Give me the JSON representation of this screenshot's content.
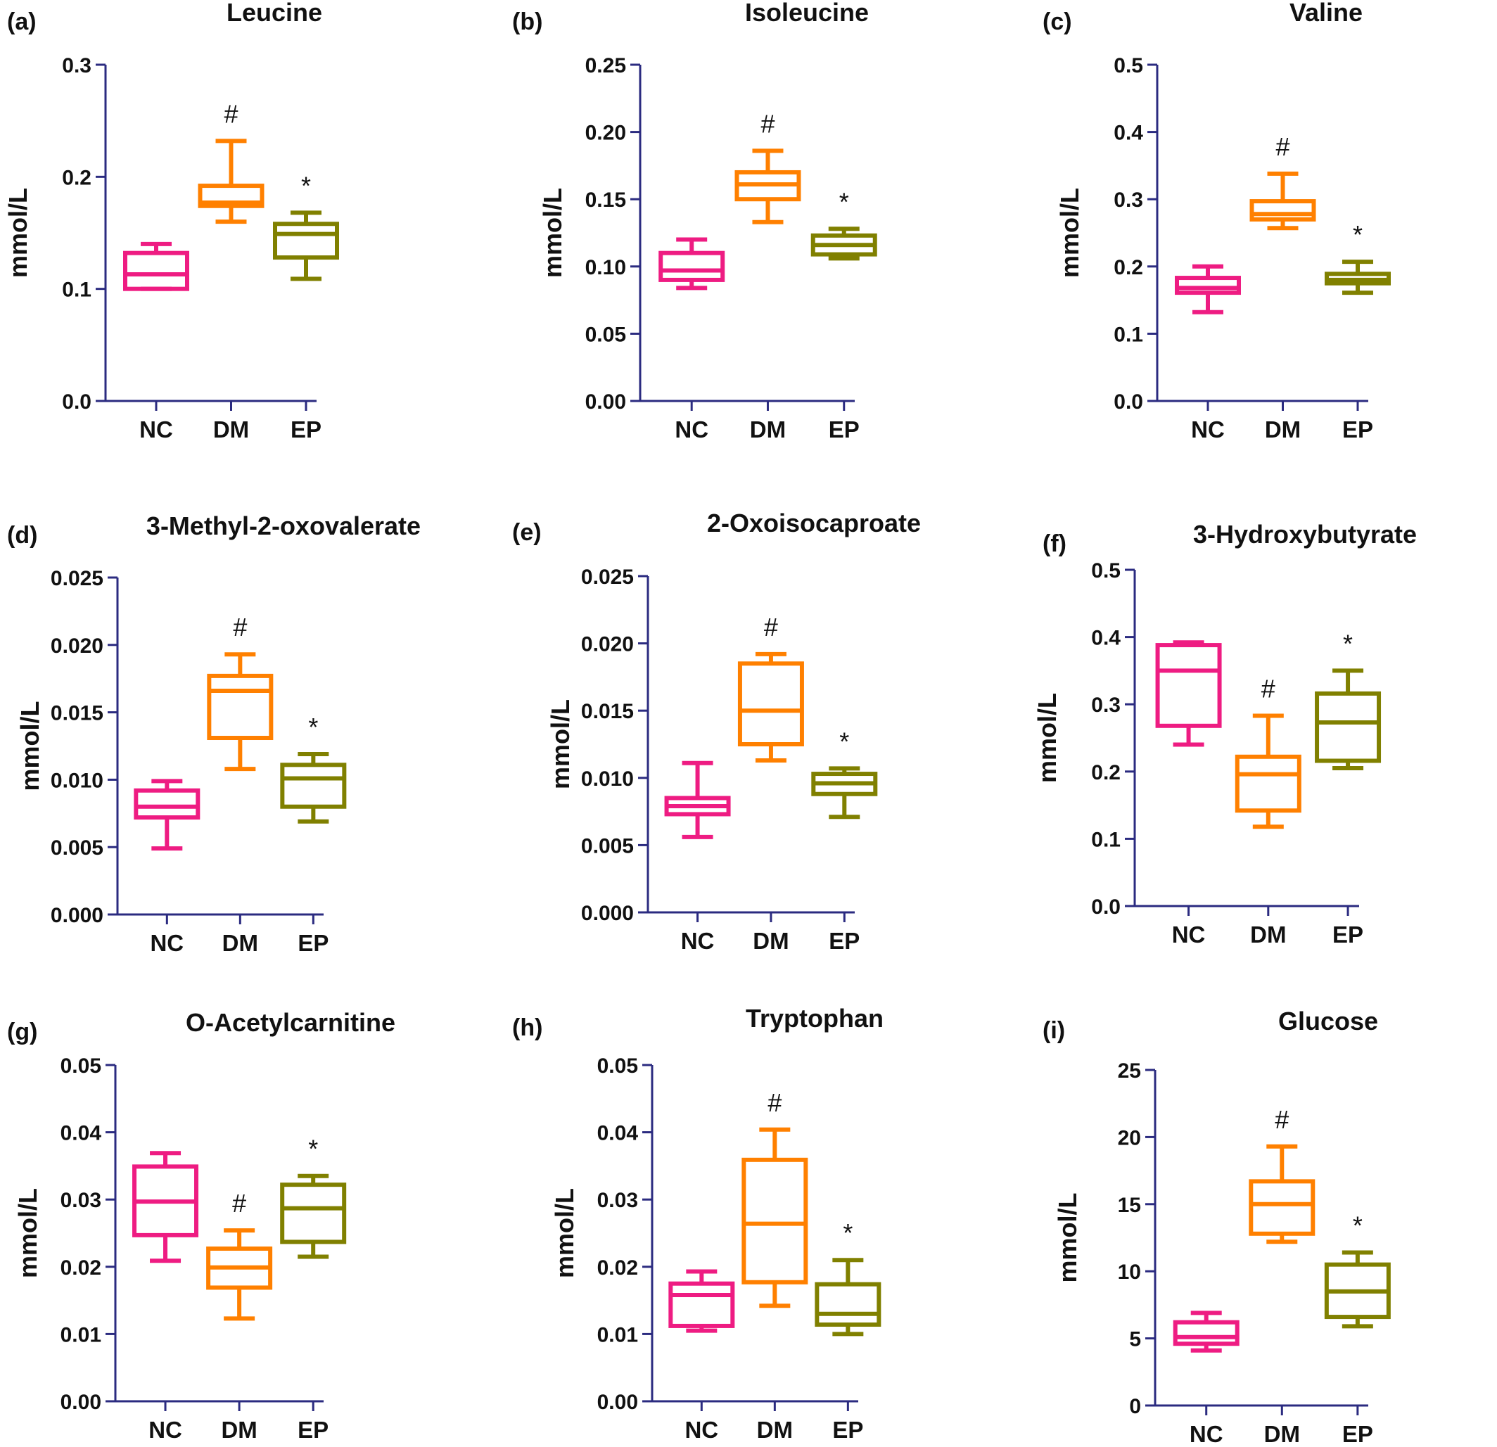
{
  "chart_data": [
    {
      "type": "box",
      "panel_label": "(a)",
      "title": "Leucine",
      "ylabel": "mmol/L",
      "ylim": [
        0,
        0.3
      ],
      "yticks": [
        0,
        0.1,
        0.2,
        0.3
      ],
      "ytick_labels": [
        "0.0",
        "0.1",
        "0.2",
        "0.3"
      ],
      "categories": [
        "NC",
        "DM",
        "EP"
      ],
      "boxes": [
        {
          "group": "NC",
          "min": 0.1,
          "q1": 0.1,
          "median": 0.113,
          "q3": 0.132,
          "max": 0.14,
          "color": "#ee1c82",
          "annotation": ""
        },
        {
          "group": "DM",
          "min": 0.16,
          "q1": 0.174,
          "median": 0.177,
          "q3": 0.192,
          "max": 0.232,
          "color": "#ff8000",
          "annotation": "#"
        },
        {
          "group": "EP",
          "min": 0.109,
          "q1": 0.128,
          "median": 0.149,
          "q3": 0.158,
          "max": 0.168,
          "color": "#808000",
          "annotation": "*"
        }
      ]
    },
    {
      "type": "box",
      "panel_label": "(b)",
      "title": "Isoleucine",
      "ylabel": "mmol/L",
      "ylim": [
        0,
        0.25
      ],
      "yticks": [
        0,
        0.05,
        0.1,
        0.15,
        0.2,
        0.25
      ],
      "ytick_labels": [
        "0.00",
        "0.05",
        "0.10",
        "0.15",
        "0.20",
        "0.25"
      ],
      "categories": [
        "NC",
        "DM",
        "EP"
      ],
      "boxes": [
        {
          "group": "NC",
          "min": 0.084,
          "q1": 0.09,
          "median": 0.097,
          "q3": 0.11,
          "max": 0.12,
          "color": "#ee1c82",
          "annotation": ""
        },
        {
          "group": "DM",
          "min": 0.133,
          "q1": 0.15,
          "median": 0.161,
          "q3": 0.17,
          "max": 0.186,
          "color": "#ff8000",
          "annotation": "#"
        },
        {
          "group": "EP",
          "min": 0.106,
          "q1": 0.109,
          "median": 0.116,
          "q3": 0.123,
          "max": 0.128,
          "color": "#808000",
          "annotation": "*"
        }
      ]
    },
    {
      "type": "box",
      "panel_label": "(c)",
      "title": "Valine",
      "ylabel": "mmol/L",
      "ylim": [
        0,
        0.5
      ],
      "yticks": [
        0,
        0.1,
        0.2,
        0.3,
        0.4,
        0.5
      ],
      "ytick_labels": [
        "0.0",
        "0.1",
        "0.2",
        "0.3",
        "0.4",
        "0.5"
      ],
      "categories": [
        "NC",
        "DM",
        "EP"
      ],
      "boxes": [
        {
          "group": "NC",
          "min": 0.132,
          "q1": 0.161,
          "median": 0.168,
          "q3": 0.183,
          "max": 0.2,
          "color": "#ee1c82",
          "annotation": ""
        },
        {
          "group": "DM",
          "min": 0.257,
          "q1": 0.27,
          "median": 0.278,
          "q3": 0.297,
          "max": 0.338,
          "color": "#ff8000",
          "annotation": "#"
        },
        {
          "group": "EP",
          "min": 0.161,
          "q1": 0.175,
          "median": 0.18,
          "q3": 0.189,
          "max": 0.207,
          "color": "#808000",
          "annotation": "*"
        }
      ]
    },
    {
      "type": "box",
      "panel_label": "(d)",
      "title": "3-Methyl-2-oxovalerate",
      "ylabel": "mmol/L",
      "ylim": [
        0,
        0.025
      ],
      "yticks": [
        0,
        0.005,
        0.01,
        0.015,
        0.02,
        0.025
      ],
      "ytick_labels": [
        "0.000",
        "0.005",
        "0.010",
        "0.015",
        "0.020",
        "0.025"
      ],
      "categories": [
        "NC",
        "DM",
        "EP"
      ],
      "boxes": [
        {
          "group": "NC",
          "min": 0.0049,
          "q1": 0.0072,
          "median": 0.008,
          "q3": 0.0092,
          "max": 0.0099,
          "color": "#ee1c82",
          "annotation": ""
        },
        {
          "group": "DM",
          "min": 0.0108,
          "q1": 0.0131,
          "median": 0.0166,
          "q3": 0.0177,
          "max": 0.0193,
          "color": "#ff8000",
          "annotation": "#"
        },
        {
          "group": "EP",
          "min": 0.0069,
          "q1": 0.008,
          "median": 0.0101,
          "q3": 0.0111,
          "max": 0.0119,
          "color": "#808000",
          "annotation": "*"
        }
      ]
    },
    {
      "type": "box",
      "panel_label": "(e)",
      "title": "2-Oxoisocaproate",
      "ylabel": "mmol/L",
      "ylim": [
        0,
        0.025
      ],
      "yticks": [
        0,
        0.005,
        0.01,
        0.015,
        0.02,
        0.025
      ],
      "ytick_labels": [
        "0.000",
        "0.005",
        "0.010",
        "0.015",
        "0.020",
        "0.025"
      ],
      "categories": [
        "NC",
        "DM",
        "EP"
      ],
      "boxes": [
        {
          "group": "NC",
          "min": 0.0056,
          "q1": 0.0073,
          "median": 0.0079,
          "q3": 0.0085,
          "max": 0.0111,
          "color": "#ee1c82",
          "annotation": ""
        },
        {
          "group": "DM",
          "min": 0.0113,
          "q1": 0.0125,
          "median": 0.015,
          "q3": 0.0185,
          "max": 0.0192,
          "color": "#ff8000",
          "annotation": "#"
        },
        {
          "group": "EP",
          "min": 0.0071,
          "q1": 0.0088,
          "median": 0.0096,
          "q3": 0.0103,
          "max": 0.0107,
          "color": "#808000",
          "annotation": "*"
        }
      ]
    },
    {
      "type": "box",
      "panel_label": "(f)",
      "title": "3-Hydroxybutyrate",
      "ylabel": "mmol/L",
      "ylim": [
        0,
        0.5
      ],
      "yticks": [
        0,
        0.1,
        0.2,
        0.3,
        0.4,
        0.5
      ],
      "ytick_labels": [
        "0.0",
        "0.1",
        "0.2",
        "0.3",
        "0.4",
        "0.5"
      ],
      "categories": [
        "NC",
        "DM",
        "EP"
      ],
      "boxes": [
        {
          "group": "NC",
          "min": 0.24,
          "q1": 0.268,
          "median": 0.35,
          "q3": 0.388,
          "max": 0.392,
          "color": "#ee1c82",
          "annotation": ""
        },
        {
          "group": "DM",
          "min": 0.118,
          "q1": 0.142,
          "median": 0.196,
          "q3": 0.222,
          "max": 0.283,
          "color": "#ff8000",
          "annotation": "#"
        },
        {
          "group": "EP",
          "min": 0.205,
          "q1": 0.216,
          "median": 0.273,
          "q3": 0.316,
          "max": 0.35,
          "color": "#808000",
          "annotation": "*"
        }
      ]
    },
    {
      "type": "box",
      "panel_label": "(g)",
      "title": "O-Acetylcarnitine",
      "ylabel": "mmol/L",
      "ylim": [
        0,
        0.05
      ],
      "yticks": [
        0,
        0.01,
        0.02,
        0.03,
        0.04,
        0.05
      ],
      "ytick_labels": [
        "0.00",
        "0.01",
        "0.02",
        "0.03",
        "0.04",
        "0.05"
      ],
      "categories": [
        "NC",
        "DM",
        "EP"
      ],
      "boxes": [
        {
          "group": "NC",
          "min": 0.0209,
          "q1": 0.0247,
          "median": 0.0297,
          "q3": 0.0349,
          "max": 0.0369,
          "color": "#ee1c82",
          "annotation": ""
        },
        {
          "group": "DM",
          "min": 0.0123,
          "q1": 0.0169,
          "median": 0.0199,
          "q3": 0.0227,
          "max": 0.0254,
          "color": "#ff8000",
          "annotation": "#"
        },
        {
          "group": "EP",
          "min": 0.0215,
          "q1": 0.0237,
          "median": 0.0287,
          "q3": 0.0322,
          "max": 0.0335,
          "color": "#808000",
          "annotation": "*"
        }
      ]
    },
    {
      "type": "box",
      "panel_label": "(h)",
      "title": "Tryptophan",
      "ylabel": "mmol/L",
      "ylim": [
        0,
        0.05
      ],
      "yticks": [
        0,
        0.01,
        0.02,
        0.03,
        0.04,
        0.05
      ],
      "ytick_labels": [
        "0.00",
        "0.01",
        "0.02",
        "0.03",
        "0.04",
        "0.05"
      ],
      "categories": [
        "NC",
        "DM",
        "EP"
      ],
      "boxes": [
        {
          "group": "NC",
          "min": 0.0105,
          "q1": 0.0112,
          "median": 0.0158,
          "q3": 0.0175,
          "max": 0.0193,
          "color": "#ee1c82",
          "annotation": ""
        },
        {
          "group": "DM",
          "min": 0.0142,
          "q1": 0.0177,
          "median": 0.0264,
          "q3": 0.0359,
          "max": 0.0404,
          "color": "#ff8000",
          "annotation": "#"
        },
        {
          "group": "EP",
          "min": 0.01,
          "q1": 0.0114,
          "median": 0.013,
          "q3": 0.0174,
          "max": 0.021,
          "color": "#808000",
          "annotation": "*"
        }
      ]
    },
    {
      "type": "box",
      "panel_label": "(i)",
      "title": "Glucose",
      "ylabel": "mmol/L",
      "ylim": [
        0,
        25
      ],
      "yticks": [
        0,
        5,
        10,
        15,
        20,
        25
      ],
      "ytick_labels": [
        "0",
        "5",
        "10",
        "15",
        "20",
        "25"
      ],
      "categories": [
        "NC",
        "DM",
        "EP"
      ],
      "boxes": [
        {
          "group": "NC",
          "min": 4.1,
          "q1": 4.6,
          "median": 5.1,
          "q3": 6.2,
          "max": 6.9,
          "color": "#ee1c82",
          "annotation": ""
        },
        {
          "group": "DM",
          "min": 12.2,
          "q1": 12.8,
          "median": 15.0,
          "q3": 16.7,
          "max": 19.3,
          "color": "#ff8000",
          "annotation": "#"
        },
        {
          "group": "EP",
          "min": 5.9,
          "q1": 6.6,
          "median": 8.5,
          "q3": 10.5,
          "max": 11.4,
          "color": "#808000",
          "annotation": "*"
        }
      ]
    }
  ]
}
